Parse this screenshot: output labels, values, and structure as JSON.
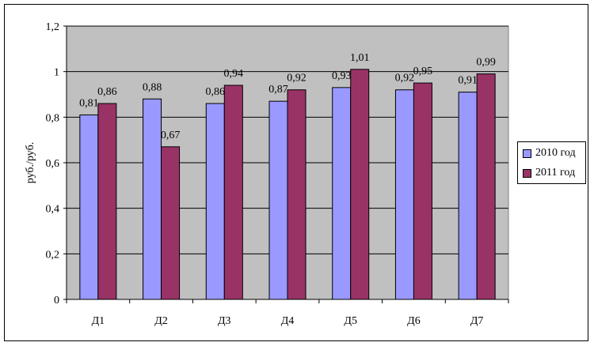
{
  "chart_data": {
    "type": "bar",
    "categories": [
      "Д1",
      "Д2",
      "Д3",
      "Д4",
      "Д5",
      "Д6",
      "Д7"
    ],
    "series": [
      {
        "name": "2010 год",
        "color": "#9999ff",
        "values": [
          0.81,
          0.88,
          0.86,
          0.87,
          0.93,
          0.92,
          0.91
        ],
        "labels": [
          "0,81",
          "0,88",
          "0,86",
          "0,87",
          "0,93",
          "0,92",
          "0,91"
        ]
      },
      {
        "name": "2011 год",
        "color": "#993366",
        "values": [
          0.86,
          0.67,
          0.94,
          0.92,
          1.01,
          0.95,
          0.99
        ],
        "labels": [
          "0,86",
          "0,67",
          "0,94",
          "0,92",
          "1,01",
          "0,95",
          "0,99"
        ]
      }
    ],
    "ylabel": "руб./руб.",
    "xlabel": "",
    "ylim": [
      0,
      1.2
    ],
    "yticks": [
      0,
      0.2,
      0.4,
      0.6,
      0.8,
      1,
      1.2
    ],
    "ytick_labels": [
      "0",
      "0,2",
      "0,4",
      "0,6",
      "0,8",
      "1",
      "1,2"
    ],
    "grid": true,
    "plot_background": "#c0c0c0",
    "legend_position": "right"
  }
}
